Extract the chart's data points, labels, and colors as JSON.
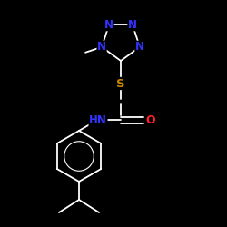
{
  "bg_color": "#000000",
  "atom_colors": {
    "N": "#3333ff",
    "O": "#ff2222",
    "S": "#cc8800",
    "C": "#ffffff",
    "H": "#ffffff"
  },
  "fig_width": 2.5,
  "fig_height": 2.5,
  "dpi": 100,
  "font_size": 8.5
}
